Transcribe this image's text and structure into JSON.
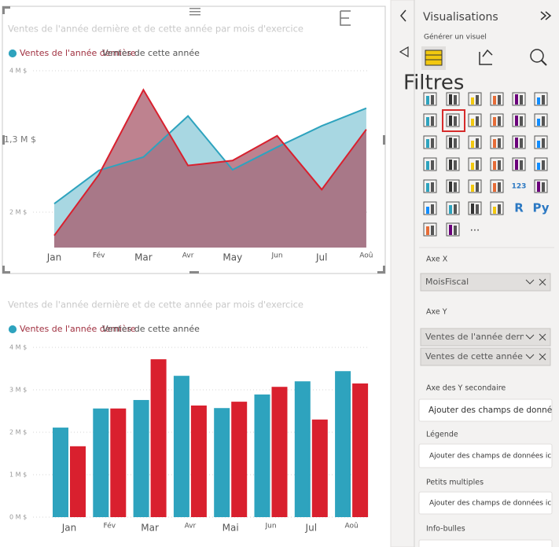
{
  "chart_data": [
    {
      "type": "area",
      "title": "Ventes de l'année dernière et de cette année par mois d'exercice",
      "categories": [
        "Jan",
        "Fév",
        "Mar",
        "Avr",
        "May",
        "Jun",
        "Jul",
        "Aoû"
      ],
      "series": [
        {
          "name": "Ventes de l'année dernière",
          "color": "#2ea3be",
          "values": [
            2120000,
            2590000,
            2780000,
            3360000,
            2600000,
            2920000,
            3220000,
            3470000
          ]
        },
        {
          "name": "Ventes de cette année",
          "color": "#d9202e",
          "values": [
            1670000,
            2530000,
            3730000,
            2660000,
            2730000,
            3080000,
            2320000,
            3170000
          ]
        }
      ],
      "ylim": [
        1500000,
        4000000
      ],
      "yticks": [
        {
          "value": 4000000,
          "label": "4 M $"
        },
        {
          "value": 2000000,
          "label": "2 M $"
        }
      ],
      "annotations": [
        "1,3 M $"
      ],
      "grid": true
    },
    {
      "type": "bar",
      "title": "Ventes de l'année dernière et de cette année par mois d'exercice",
      "categories": [
        "Jan",
        "Fév",
        "Mar",
        "Avr",
        "Mai",
        "Jun",
        "Jul",
        "Aoû"
      ],
      "series": [
        {
          "name": "Ventes de l'année dernière",
          "color": "#2ea3be",
          "values": [
            2110000,
            2560000,
            2760000,
            3330000,
            2570000,
            2890000,
            3200000,
            3440000
          ]
        },
        {
          "name": "Ventes de cette année",
          "color": "#d9202e",
          "values": [
            1670000,
            2560000,
            3720000,
            2630000,
            2720000,
            3070000,
            2300000,
            3150000
          ]
        }
      ],
      "ylim": [
        0,
        4000000
      ],
      "yticks": [
        {
          "value": 4000000,
          "label": "4 M $"
        },
        {
          "value": 3000000,
          "label": "3 M $"
        },
        {
          "value": 2000000,
          "label": "2 M $"
        },
        {
          "value": 1000000,
          "label": "1 M $"
        },
        {
          "value": 0,
          "label": "0 M $"
        }
      ],
      "grid": true
    }
  ],
  "filters_pane": {
    "title": "Filtres"
  },
  "visualizations_pane": {
    "title": "Visualisations",
    "subtitle": "Générer un visuel",
    "icon_texts": [
      "123",
      "R",
      "Py"
    ],
    "more": "...",
    "wells": [
      {
        "label": "Axe X",
        "fields": [
          "MoisFiscal"
        ]
      },
      {
        "label": "Axe Y",
        "fields": [
          "Ventes de l'année dernière",
          "Ventes de cette année"
        ]
      },
      {
        "label": "Axe des Y secondaire",
        "placeholder": "Ajouter des champs de données ici"
      },
      {
        "label": "Légende",
        "placeholder": "Ajouter des champs de données ici"
      },
      {
        "label": "Petits multiples",
        "placeholder": "Ajouter des champs de données ici"
      },
      {
        "label": "Info-bulles"
      }
    ]
  }
}
